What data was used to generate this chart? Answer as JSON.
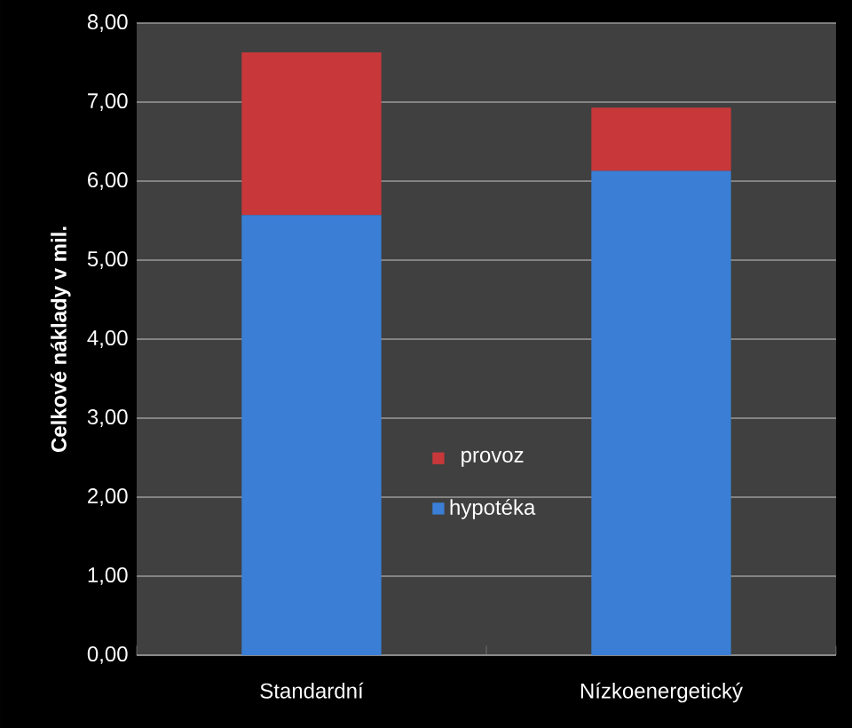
{
  "chart_data": {
    "type": "bar",
    "stacked": true,
    "ylabel": "Celkové náklady v mil.",
    "categories": [
      "Standardní",
      "Nízkoenergetický"
    ],
    "series": [
      {
        "name": "hypotéka",
        "color": "#3a7fd5",
        "values": [
          5.57,
          6.13
        ]
      },
      {
        "name": "provoz",
        "color": "#c8383a",
        "values": [
          2.06,
          0.8
        ]
      }
    ],
    "ylim": [
      0,
      8
    ],
    "yticks": [
      {
        "value": 0,
        "label": "0,00"
      },
      {
        "value": 1,
        "label": "1,00"
      },
      {
        "value": 2,
        "label": "2,00"
      },
      {
        "value": 3,
        "label": "3,00"
      },
      {
        "value": 4,
        "label": "4,00"
      },
      {
        "value": 5,
        "label": "5,00"
      },
      {
        "value": 6,
        "label": "6,00"
      },
      {
        "value": 7,
        "label": "7,00"
      },
      {
        "value": 8,
        "label": "8,00"
      }
    ],
    "grid": "y",
    "legend": "center"
  }
}
